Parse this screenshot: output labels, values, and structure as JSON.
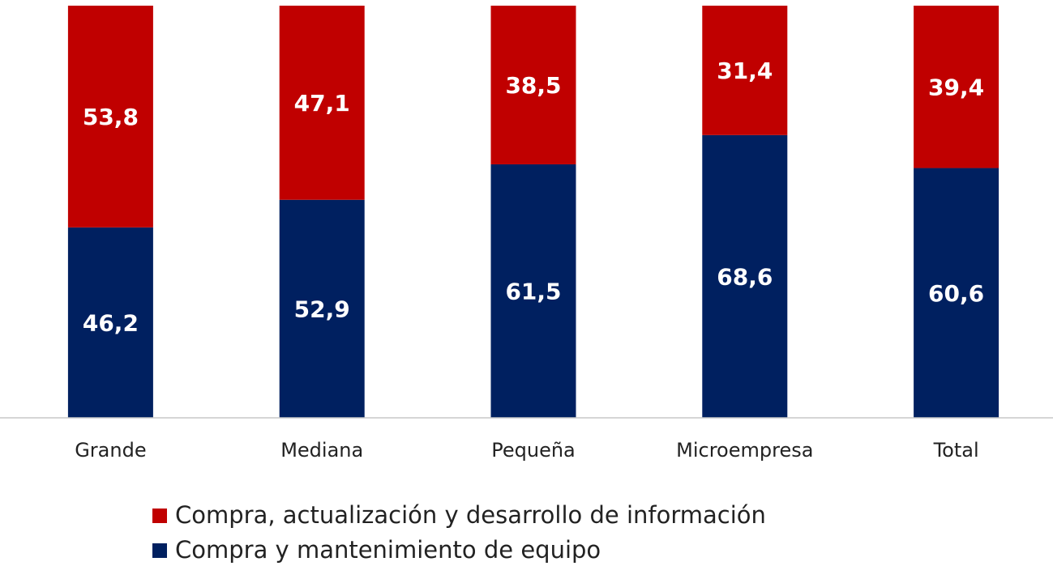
{
  "chart_data": {
    "type": "stacked_bar",
    "categories": [
      "Grande",
      "Mediana",
      "Pequeña",
      "Microempresa",
      "Total"
    ],
    "series": [
      {
        "name": "Compra, actualización y desarrollo de información",
        "color": "#c00000",
        "values": [
          53.8,
          47.1,
          38.5,
          31.4,
          39.4
        ],
        "value_labels": [
          "53,8",
          "47,1",
          "38,5",
          "31,4",
          "39,4"
        ]
      },
      {
        "name": "Compra y mantenimiento de equipo",
        "color": "#002060",
        "values": [
          46.2,
          52.9,
          61.5,
          68.6,
          60.6
        ],
        "value_labels": [
          "46,2",
          "52,9",
          "61,5",
          "68,6",
          "60,6"
        ]
      }
    ],
    "ylim": [
      0,
      100
    ]
  }
}
